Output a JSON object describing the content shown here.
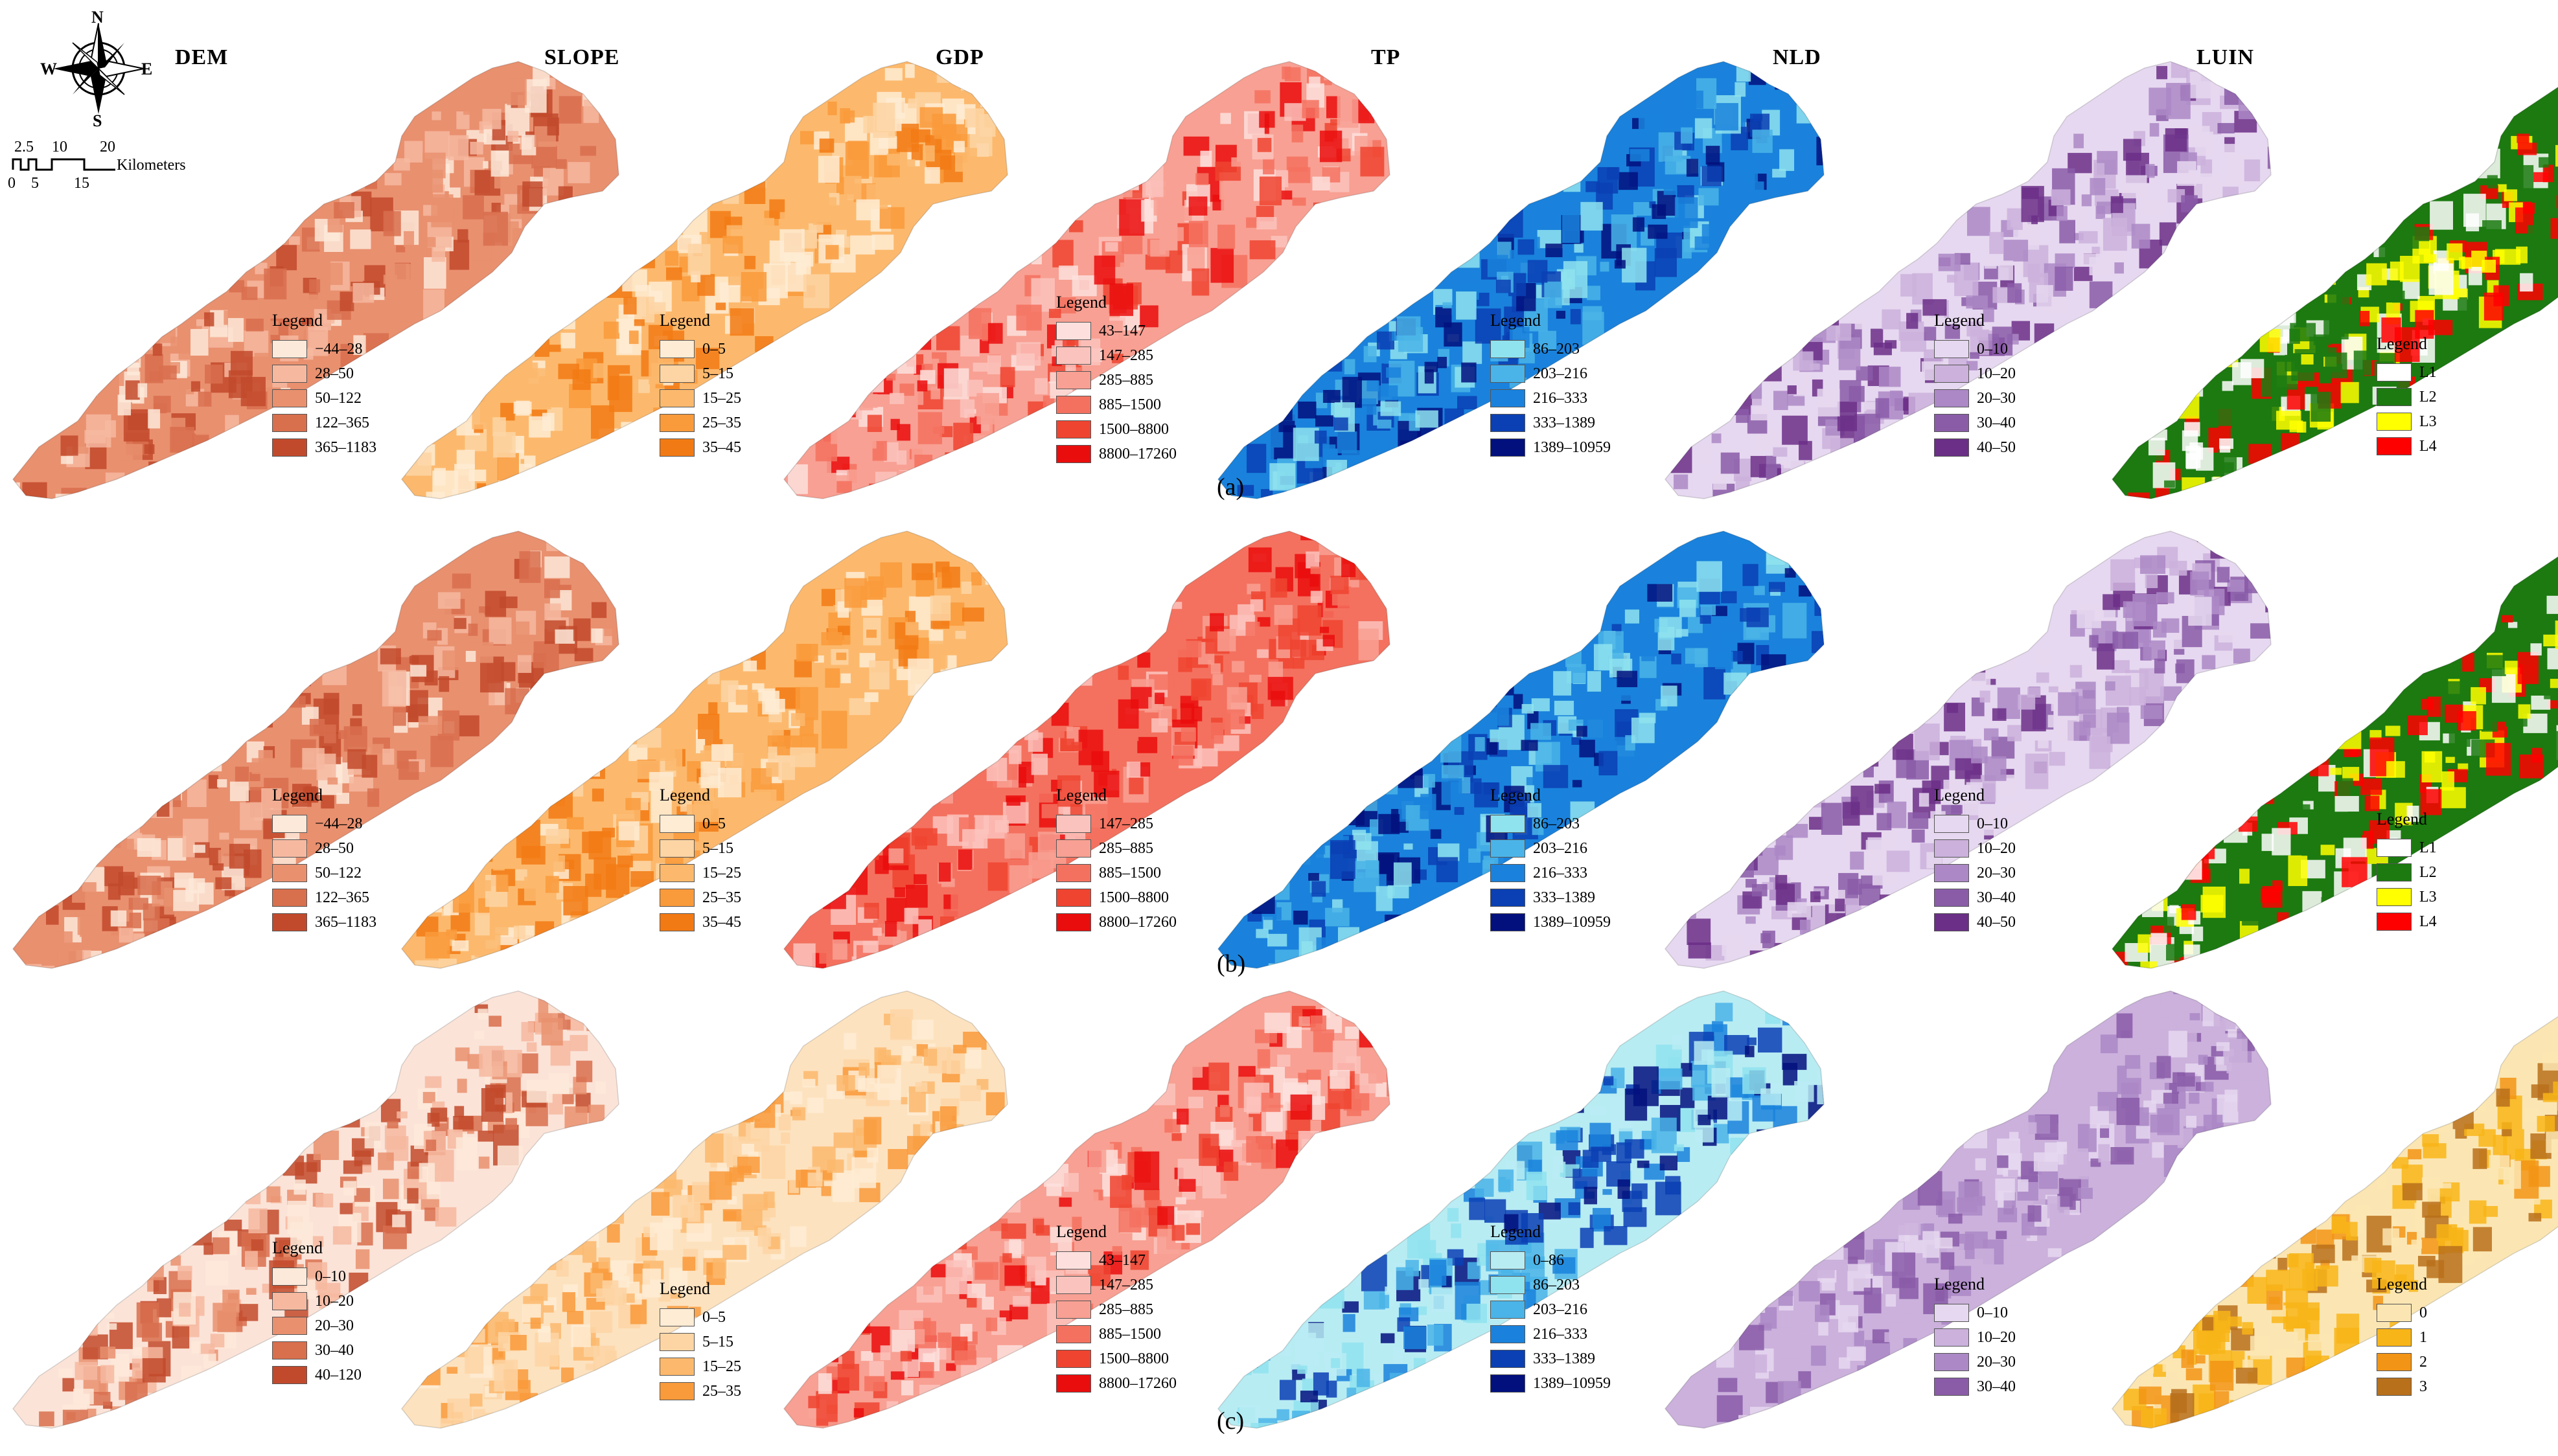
{
  "titles": [
    "DEM",
    "SLOPE",
    "GDP",
    "TP",
    "NLD",
    "LUIN"
  ],
  "row_labels": [
    "(a)",
    "(b)",
    "(c)"
  ],
  "legend_title": "Legend",
  "compass": {
    "n": "N",
    "s": "S",
    "e": "E",
    "w": "W"
  },
  "scalebar": {
    "top_ticks": [
      "2.5",
      "10",
      "20"
    ],
    "bottom_ticks": [
      "0",
      "5",
      "15"
    ],
    "unit": "Kilometers"
  },
  "colors": {
    "dem": [
      "#fde9d9",
      "#f6b9a0",
      "#e9906f",
      "#d86f4d",
      "#c24a2c"
    ],
    "slope": [
      "#feecd4",
      "#fdd5a4",
      "#fcb96d",
      "#f99a3b",
      "#f27a14"
    ],
    "gdp": [
      "#fde0dd",
      "#fbc3bd",
      "#f8a093",
      "#f4715f",
      "#ee4430",
      "#ea0d0d"
    ],
    "tp": [
      "#b8ecf3",
      "#8fe3ef",
      "#4ab4e8",
      "#1a82dc",
      "#0a40b4",
      "#02107e"
    ],
    "nld": [
      "#e6d8f0",
      "#cbb1dc",
      "#ac88c6",
      "#8a5ca8",
      "#6b2f87"
    ],
    "luin": [
      "#ffffff",
      "#1c7a10",
      "#ffff00",
      "#ff0000"
    ],
    "luin_c": [
      "#fbe6b3",
      "#f8b518",
      "#f29415",
      "#b8701b"
    ]
  },
  "rows": [
    {
      "row": "a",
      "maps": [
        {
          "var": "DEM",
          "fill": "#e9906f",
          "legend": [
            {
              "label": "−44–28",
              "color": "#fde9d9"
            },
            {
              "label": "28–50",
              "color": "#f6b9a0"
            },
            {
              "label": "50–122",
              "color": "#e9906f"
            },
            {
              "label": "122–365",
              "color": "#d86f4d"
            },
            {
              "label": "365–1183",
              "color": "#c24a2c"
            }
          ]
        },
        {
          "var": "SLOPE",
          "fill": "#fcb96d",
          "legend": [
            {
              "label": "0–5",
              "color": "#feecd4"
            },
            {
              "label": "5–15",
              "color": "#fdd5a4"
            },
            {
              "label": "15–25",
              "color": "#fcb96d"
            },
            {
              "label": "25–35",
              "color": "#f99a3b"
            },
            {
              "label": "35–45",
              "color": "#f27a14"
            }
          ]
        },
        {
          "var": "GDP",
          "fill": "#f8a093",
          "legend": [
            {
              "label": "43–147",
              "color": "#fde0dd"
            },
            {
              "label": "147–285",
              "color": "#fbc3bd"
            },
            {
              "label": "285–885",
              "color": "#f8a093"
            },
            {
              "label": "885–1500",
              "color": "#f4715f"
            },
            {
              "label": "1500–8800",
              "color": "#ee4430"
            },
            {
              "label": "8800–17260",
              "color": "#ea0d0d"
            }
          ]
        },
        {
          "var": "TP",
          "fill": "#1a82dc",
          "legend": [
            {
              "label": "86–203",
              "color": "#8fe3ef"
            },
            {
              "label": "203–216",
              "color": "#4ab4e8"
            },
            {
              "label": "216–333",
              "color": "#1a82dc"
            },
            {
              "label": "333–1389",
              "color": "#0a40b4"
            },
            {
              "label": "1389–10959",
              "color": "#02107e"
            }
          ]
        },
        {
          "var": "NLD",
          "fill": "#e6d8f0",
          "legend": [
            {
              "label": "0–10",
              "color": "#e6d8f0"
            },
            {
              "label": "10–20",
              "color": "#cbb1dc"
            },
            {
              "label": "20–30",
              "color": "#ac88c6"
            },
            {
              "label": "30–40",
              "color": "#8a5ca8"
            },
            {
              "label": "40–50",
              "color": "#6b2f87"
            }
          ]
        },
        {
          "var": "LUIN",
          "fill": "#1c7a10",
          "legend": [
            {
              "label": "L1",
              "color": "#ffffff"
            },
            {
              "label": "L2",
              "color": "#1c7a10"
            },
            {
              "label": "L3",
              "color": "#ffff00"
            },
            {
              "label": "L4",
              "color": "#ff0000"
            }
          ]
        }
      ]
    },
    {
      "row": "b",
      "maps": [
        {
          "var": "DEM",
          "fill": "#e9906f",
          "legend": [
            {
              "label": "−44–28",
              "color": "#fde9d9"
            },
            {
              "label": "28–50",
              "color": "#f6b9a0"
            },
            {
              "label": "50–122",
              "color": "#e9906f"
            },
            {
              "label": "122–365",
              "color": "#d86f4d"
            },
            {
              "label": "365–1183",
              "color": "#c24a2c"
            }
          ]
        },
        {
          "var": "SLOPE",
          "fill": "#fcb96d",
          "legend": [
            {
              "label": "0–5",
              "color": "#feecd4"
            },
            {
              "label": "5–15",
              "color": "#fdd5a4"
            },
            {
              "label": "15–25",
              "color": "#fcb96d"
            },
            {
              "label": "25–35",
              "color": "#f99a3b"
            },
            {
              "label": "35–45",
              "color": "#f27a14"
            }
          ]
        },
        {
          "var": "GDP",
          "fill": "#f4715f",
          "legend": [
            {
              "label": "147–285",
              "color": "#fbc3bd"
            },
            {
              "label": "285–885",
              "color": "#f8a093"
            },
            {
              "label": "885–1500",
              "color": "#f4715f"
            },
            {
              "label": "1500–8800",
              "color": "#ee4430"
            },
            {
              "label": "8800–17260",
              "color": "#ea0d0d"
            }
          ]
        },
        {
          "var": "TP",
          "fill": "#1a82dc",
          "legend": [
            {
              "label": "86–203",
              "color": "#8fe3ef"
            },
            {
              "label": "203–216",
              "color": "#4ab4e8"
            },
            {
              "label": "216–333",
              "color": "#1a82dc"
            },
            {
              "label": "333–1389",
              "color": "#0a40b4"
            },
            {
              "label": "1389–10959",
              "color": "#02107e"
            }
          ]
        },
        {
          "var": "NLD",
          "fill": "#e6d8f0",
          "legend": [
            {
              "label": "0–10",
              "color": "#e6d8f0"
            },
            {
              "label": "10–20",
              "color": "#cbb1dc"
            },
            {
              "label": "20–30",
              "color": "#ac88c6"
            },
            {
              "label": "30–40",
              "color": "#8a5ca8"
            },
            {
              "label": "40–50",
              "color": "#6b2f87"
            }
          ]
        },
        {
          "var": "LUIN",
          "fill": "#1c7a10",
          "legend": [
            {
              "label": "L1",
              "color": "#ffffff"
            },
            {
              "label": "L2",
              "color": "#1c7a10"
            },
            {
              "label": "L3",
              "color": "#ffff00"
            },
            {
              "label": "L4",
              "color": "#ff0000"
            }
          ]
        }
      ]
    },
    {
      "row": "c",
      "maps": [
        {
          "var": "DEM",
          "fill": "#fbe3d8",
          "legend": [
            {
              "label": "0–10",
              "color": "#fde9d9"
            },
            {
              "label": "10–20",
              "color": "#f6b9a0"
            },
            {
              "label": "20–30",
              "color": "#e9906f"
            },
            {
              "label": "30–40",
              "color": "#d86f4d"
            },
            {
              "label": "40–120",
              "color": "#c24a2c"
            }
          ]
        },
        {
          "var": "SLOPE",
          "fill": "#fde2bf",
          "legend": [
            {
              "label": "0–5",
              "color": "#feecd4"
            },
            {
              "label": "5–15",
              "color": "#fdd5a4"
            },
            {
              "label": "15–25",
              "color": "#fcb96d"
            },
            {
              "label": "25–35",
              "color": "#f99a3b"
            }
          ]
        },
        {
          "var": "GDP",
          "fill": "#f8a093",
          "legend": [
            {
              "label": "43–147",
              "color": "#fde0dd"
            },
            {
              "label": "147–285",
              "color": "#fbc3bd"
            },
            {
              "label": "285–885",
              "color": "#f8a093"
            },
            {
              "label": "885–1500",
              "color": "#f4715f"
            },
            {
              "label": "1500–8800",
              "color": "#ee4430"
            },
            {
              "label": "8800–17260",
              "color": "#ea0d0d"
            }
          ]
        },
        {
          "var": "TP",
          "fill": "#b8ecf3",
          "legend": [
            {
              "label": "0–86",
              "color": "#b8ecf3"
            },
            {
              "label": "86–203",
              "color": "#8fe3ef"
            },
            {
              "label": "203–216",
              "color": "#4ab4e8"
            },
            {
              "label": "216–333",
              "color": "#1a82dc"
            },
            {
              "label": "333–1389",
              "color": "#0a40b4"
            },
            {
              "label": "1389–10959",
              "color": "#02107e"
            }
          ]
        },
        {
          "var": "NLD",
          "fill": "#cbb1dc",
          "legend": [
            {
              "label": "0–10",
              "color": "#e6d8f0"
            },
            {
              "label": "10–20",
              "color": "#cbb1dc"
            },
            {
              "label": "20–30",
              "color": "#ac88c6"
            },
            {
              "label": "30–40",
              "color": "#8a5ca8"
            }
          ]
        },
        {
          "var": "LUIN",
          "fill": "#fbe6b3",
          "legend": [
            {
              "label": "0",
              "color": "#fbe6b3"
            },
            {
              "label": "1",
              "color": "#f8b518"
            },
            {
              "label": "2",
              "color": "#f29415"
            },
            {
              "label": "3",
              "color": "#b8701b"
            }
          ]
        }
      ]
    }
  ]
}
